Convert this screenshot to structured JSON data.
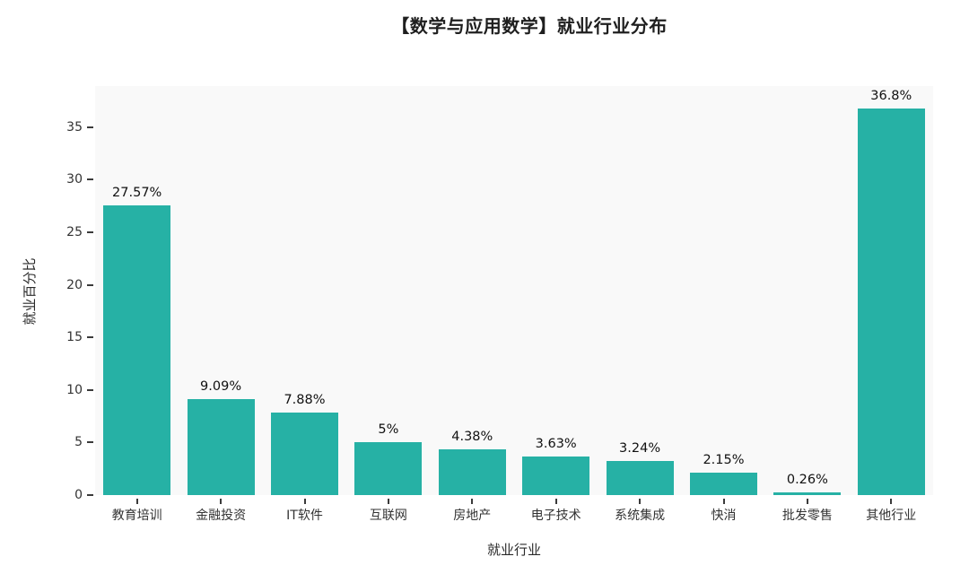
{
  "chart_data": {
    "type": "bar",
    "title": "【数学与应用数学】就业行业分布",
    "xlabel": "就业行业",
    "ylabel": "就业百分比",
    "categories": [
      "教育培训",
      "金融投资",
      "IT软件",
      "互联网",
      "房地产",
      "电子技术",
      "系统集成",
      "快消",
      "批发零售",
      "其他行业"
    ],
    "values": [
      27.57,
      9.09,
      7.88,
      5,
      4.38,
      3.63,
      3.24,
      2.15,
      0.26,
      36.8
    ],
    "labels": [
      "27.57%",
      "9.09%",
      "7.88%",
      "5%",
      "4.38%",
      "3.63%",
      "3.24%",
      "2.15%",
      "0.26%",
      "36.8%"
    ],
    "yticks": [
      0,
      5,
      10,
      15,
      20,
      25,
      30,
      35
    ],
    "ylim": [
      0,
      38.9
    ],
    "grid": false,
    "legend": "none",
    "bar_gap_fraction": 0.2,
    "colors": {
      "bar": "#26b1a5",
      "plot_background": "#f9f9f9",
      "figure_background": "#ffffff",
      "text": "#2a2a2a"
    }
  }
}
